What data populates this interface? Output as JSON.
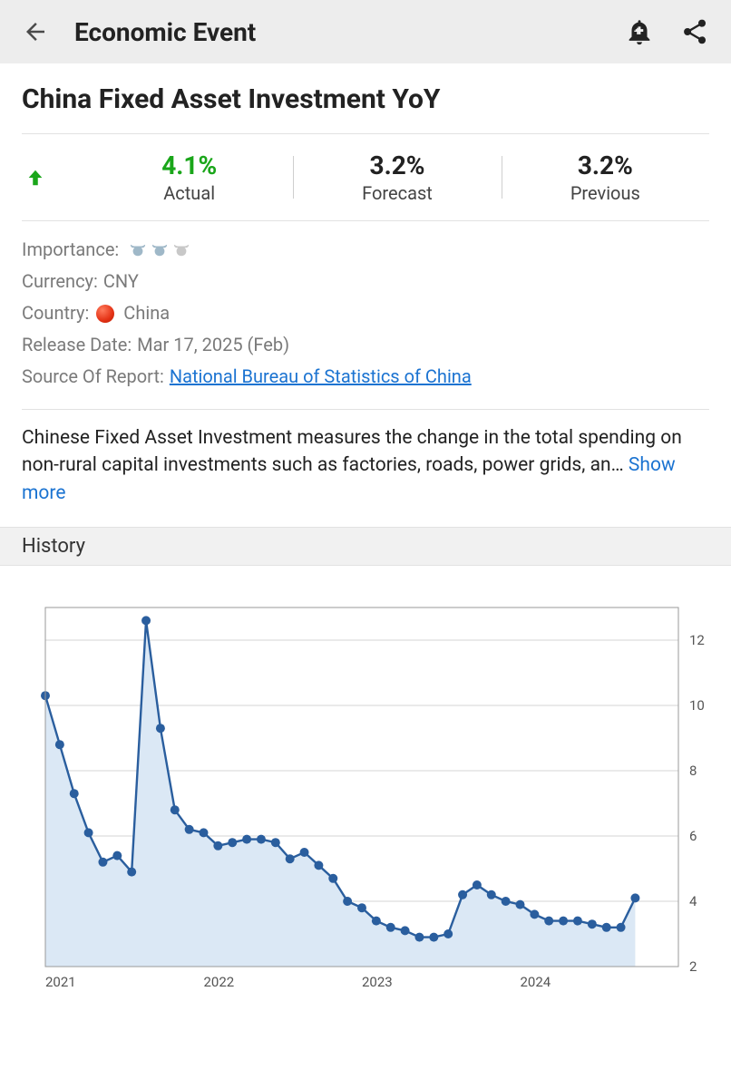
{
  "header": {
    "title": "Economic Event"
  },
  "page": {
    "title": "China Fixed Asset Investment YoY"
  },
  "stats": {
    "direction": "up",
    "direction_color": "#1aa61a",
    "actual": {
      "value": "4.1%",
      "label": "Actual",
      "color": "#1aa61a"
    },
    "forecast": {
      "value": "3.2%",
      "label": "Forecast",
      "color": "#222222"
    },
    "previous": {
      "value": "3.2%",
      "label": "Previous",
      "color": "#222222"
    }
  },
  "meta": {
    "importance_label": "Importance:",
    "importance_active": 2,
    "importance_total": 3,
    "currency_label": "Currency:",
    "currency_value": "CNY",
    "country_label": "Country:",
    "country_value": "China",
    "release_label": "Release Date:",
    "release_value": "Mar 17, 2025 (Feb)",
    "source_label": "Source Of Report:",
    "source_value": "National Bureau of Statistics of China"
  },
  "description": {
    "text": "Chinese Fixed Asset Investment measures the change in the total spending on non-rural capital investments such as factories, roads, power grids, an…",
    "show_more": "Show more"
  },
  "history": {
    "heading": "History"
  },
  "chart": {
    "type": "line",
    "background_color": "#ffffff",
    "area_fill": "#dbe8f5",
    "line_color": "#2a5e9e",
    "marker_color": "#2a5e9e",
    "marker_radius": 5,
    "line_width": 2.4,
    "border_color": "#9a9a9a",
    "grid_color": "#d6d6d6",
    "tick_font_size": 15,
    "tick_color": "#555555",
    "ylim": [
      2,
      13
    ],
    "yticks": [
      2,
      4,
      6,
      8,
      10,
      12
    ],
    "xlim_index": [
      0,
      44
    ],
    "x_categories": [
      "2021",
      "2022",
      "2023",
      "2024"
    ],
    "x_category_indices": [
      0,
      11,
      22,
      33
    ],
    "values": [
      10.3,
      8.8,
      7.3,
      6.1,
      5.2,
      5.4,
      4.9,
      12.6,
      9.3,
      6.8,
      6.2,
      6.1,
      5.7,
      5.8,
      5.9,
      5.9,
      5.8,
      5.3,
      5.5,
      5.1,
      4.7,
      4.0,
      3.8,
      3.4,
      3.2,
      3.1,
      2.9,
      2.9,
      3.0,
      4.2,
      4.5,
      4.2,
      4.0,
      3.9,
      3.6,
      3.4,
      3.4,
      3.4,
      3.3,
      3.2,
      3.2,
      4.1
    ]
  }
}
